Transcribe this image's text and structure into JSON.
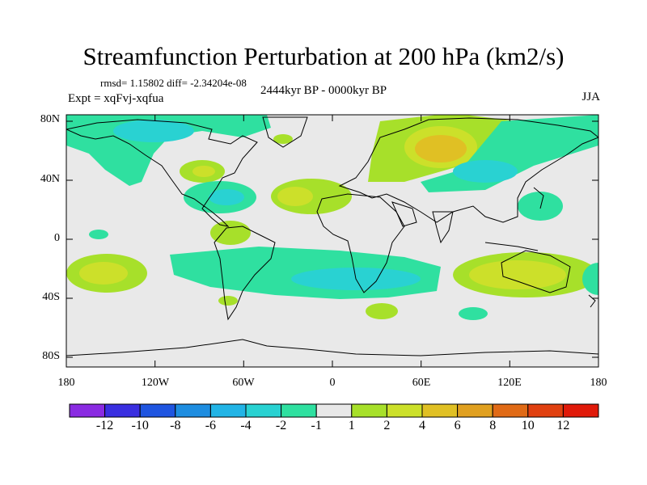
{
  "title": "Streamfunction Perturbation at 200 hPa (km2/s)",
  "stats": "rmsd= 1.15802 diff= -2.34204e-08",
  "period": "2444kyr BP - 0000kyr BP",
  "experiment": "Expt = xqFvj-xqfua",
  "season": "JJA",
  "lat_labels": [
    "80N",
    "40N",
    "0",
    "40S",
    "80S"
  ],
  "lon_labels": [
    "180",
    "120W",
    "60W",
    "0",
    "60E",
    "120E",
    "180"
  ],
  "colorbar": {
    "labels": [
      "-12",
      "-10",
      "-8",
      "-6",
      "-4",
      "-2",
      "-1",
      "1",
      "2",
      "4",
      "6",
      "8",
      "10",
      "12"
    ],
    "colors": [
      "#8a2be2",
      "#3a2fe0",
      "#1f55e0",
      "#1e8de0",
      "#22b4e6",
      "#29d2d2",
      "#2fe0a0",
      "#e8e8e8",
      "#a7e02a",
      "#cce02a",
      "#e0c024",
      "#e0a020",
      "#e06a16",
      "#e04010",
      "#e01a0a"
    ]
  }
}
